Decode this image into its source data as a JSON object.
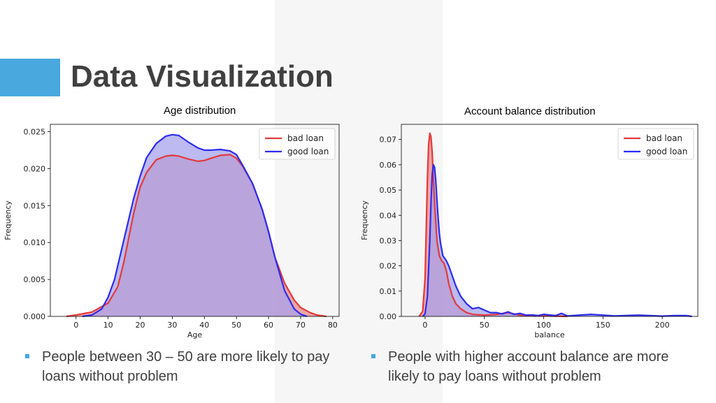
{
  "slide": {
    "title": "Data Visualization",
    "accent_color": "#49a8dd"
  },
  "bullets": [
    {
      "text": "People between 30 – 50 are more likely to pay loans without problem"
    },
    {
      "text": "People with higher account balance are more likely to pay loans without problem"
    }
  ],
  "chart_data": [
    {
      "type": "area",
      "title": "Age distribution",
      "xlabel": "Age",
      "ylabel": "Frequency",
      "xlim": [
        -8,
        82
      ],
      "ylim": [
        0,
        0.026
      ],
      "xticks": [
        "0",
        "10",
        "20",
        "30",
        "40",
        "50",
        "60",
        "70",
        "80"
      ],
      "yticks": [
        "0.000",
        "0.005",
        "0.010",
        "0.015",
        "0.020",
        "0.025"
      ],
      "legend_position": "top-right",
      "series": [
        {
          "name": "bad loan",
          "color": "#e23a3a",
          "fill": "#f08a8a",
          "x": [
            -3,
            0,
            5,
            10,
            13,
            15,
            18,
            20,
            22,
            25,
            28,
            30,
            32,
            35,
            38,
            40,
            42,
            45,
            48,
            50,
            52,
            55,
            58,
            60,
            62,
            65,
            68,
            70,
            73,
            75,
            78
          ],
          "y": [
            0,
            0.0002,
            0.0006,
            0.0018,
            0.004,
            0.0075,
            0.014,
            0.0175,
            0.0195,
            0.0212,
            0.0217,
            0.0218,
            0.0217,
            0.0213,
            0.021,
            0.0211,
            0.0214,
            0.0218,
            0.0219,
            0.0214,
            0.0203,
            0.018,
            0.0145,
            0.0115,
            0.008,
            0.0045,
            0.0022,
            0.0012,
            0.0005,
            0.0002,
            0
          ]
        },
        {
          "name": "good loan",
          "color": "#2c2cf0",
          "fill": "#a6a3ec",
          "x": [
            2,
            5,
            8,
            10,
            12,
            15,
            18,
            20,
            22,
            25,
            28,
            30,
            32,
            35,
            38,
            40,
            42,
            45,
            48,
            50,
            52,
            55,
            58,
            60,
            62,
            65,
            68,
            70,
            72
          ],
          "y": [
            0,
            0.0002,
            0.001,
            0.0026,
            0.005,
            0.0105,
            0.016,
            0.019,
            0.0215,
            0.0234,
            0.0244,
            0.0246,
            0.0245,
            0.0236,
            0.0228,
            0.0225,
            0.0225,
            0.0226,
            0.0224,
            0.0219,
            0.0204,
            0.018,
            0.0145,
            0.0115,
            0.008,
            0.0035,
            0.001,
            0.0003,
            0
          ]
        }
      ]
    },
    {
      "type": "area",
      "title": "Account balance distribution",
      "xlabel": "balance",
      "ylabel": "Frequency",
      "xlim": [
        -20,
        230
      ],
      "ylim": [
        0,
        0.076
      ],
      "xticks": [
        "0",
        "50",
        "100",
        "150",
        "200"
      ],
      "yticks": [
        "0.00",
        "0.01",
        "0.02",
        "0.03",
        "0.04",
        "0.05",
        "0.06",
        "0.07"
      ],
      "legend_position": "top-right",
      "series": [
        {
          "name": "bad loan",
          "color": "#e23a3a",
          "fill": "#f08a8a",
          "x": [
            -5,
            -2,
            0,
            1,
            2,
            3,
            4,
            5,
            6,
            7,
            8,
            10,
            12,
            14,
            16,
            18,
            20,
            23,
            26,
            30,
            35,
            40,
            50,
            60,
            70,
            80,
            100,
            120
          ],
          "y": [
            0,
            0.002,
            0.015,
            0.035,
            0.055,
            0.068,
            0.0725,
            0.071,
            0.065,
            0.055,
            0.045,
            0.03,
            0.024,
            0.022,
            0.021,
            0.018,
            0.013,
            0.008,
            0.005,
            0.003,
            0.0015,
            0.0008,
            0.0005,
            0.0008,
            0.0015,
            0.0005,
            0.0002,
            0
          ]
        },
        {
          "name": "good loan",
          "color": "#2c2cf0",
          "fill": "#a6a3ec",
          "x": [
            -2,
            0,
            2,
            4,
            5,
            6,
            7,
            8,
            9,
            10,
            11,
            12,
            13,
            15,
            18,
            20,
            23,
            26,
            30,
            35,
            40,
            45,
            50,
            55,
            60,
            65,
            70,
            75,
            80,
            85,
            90,
            95,
            100,
            110,
            115,
            120,
            140,
            160,
            180,
            200,
            210,
            220,
            225
          ],
          "y": [
            0,
            0.001,
            0.008,
            0.03,
            0.045,
            0.056,
            0.06,
            0.059,
            0.054,
            0.046,
            0.039,
            0.033,
            0.029,
            0.024,
            0.022,
            0.02,
            0.016,
            0.012,
            0.008,
            0.005,
            0.003,
            0.0035,
            0.0025,
            0.0015,
            0.0015,
            0.001,
            0.0018,
            0.0008,
            0.0012,
            0.0005,
            0.0006,
            0.0003,
            0.0008,
            0.0003,
            0.0012,
            0.0002,
            0.0008,
            0.0002,
            0.0005,
            0.0001,
            0.0003,
            0.0003,
            0
          ]
        }
      ]
    }
  ]
}
